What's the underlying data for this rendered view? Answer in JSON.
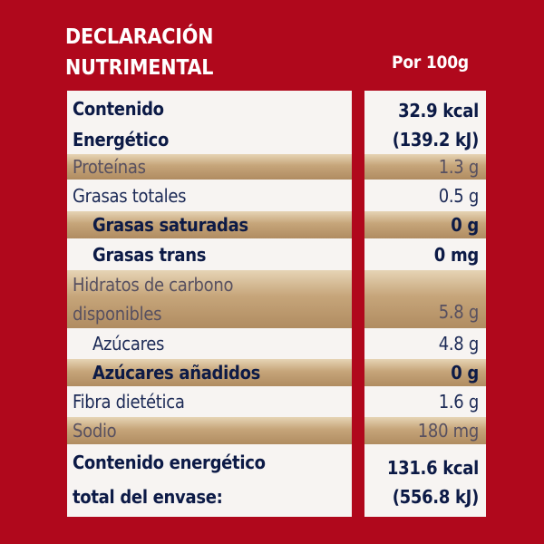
{
  "header": {
    "title_line1": "DECLARACIÓN",
    "title_line2": "NUTRIMENTAL",
    "per_label": "Por 100g"
  },
  "rows": {
    "energy": {
      "label_line1": "Contenido",
      "label_line2": "Energético",
      "value_line1": "32.9 kcal",
      "value_line2": "(139.2 kJ)"
    },
    "protein": {
      "label": "Proteínas",
      "value": "1.3 g"
    },
    "fat_total": {
      "label": "Grasas totales",
      "value": "0.5 g"
    },
    "fat_saturated": {
      "label": "Grasas saturadas",
      "value": "0 g"
    },
    "fat_trans": {
      "label": "Grasas trans",
      "value": "0 mg"
    },
    "carbs": {
      "label_line1": "Hidratos de carbono",
      "label_line2": "disponibles",
      "value": "5.8 g"
    },
    "sugars": {
      "label": "Azúcares",
      "value": "4.8 g"
    },
    "added_sugars": {
      "label": "Azúcares añadidos",
      "value": "0 g"
    },
    "fiber": {
      "label": "Fibra dietética",
      "value": "1.6 g"
    },
    "sodium": {
      "label": "Sodio",
      "value": "180 mg"
    },
    "total_energy": {
      "label_line1": "Contenido energético",
      "label_line2": "total del envase:",
      "value_line1": "131.6 kcal",
      "value_line2": "(556.8 kJ)"
    }
  },
  "colors": {
    "background": "#b0081c",
    "panel": "#f7f4f2",
    "gold": "#c6a57a",
    "text": "#1c2a56"
  }
}
